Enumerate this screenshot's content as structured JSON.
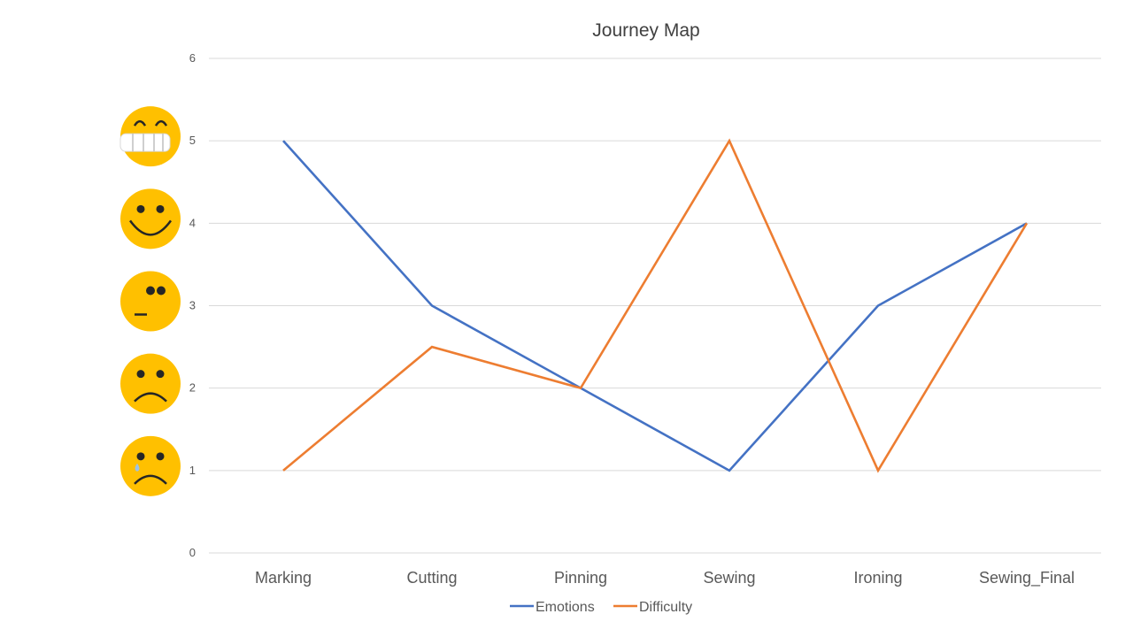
{
  "chart_data": {
    "type": "line",
    "title": "Journey Map",
    "xlabel": "",
    "ylabel": "",
    "categories": [
      "Marking",
      "Cutting",
      "Pinning",
      "Sewing",
      "Ironing",
      "Sewing_Final"
    ],
    "ylim": [
      0,
      6
    ],
    "yticks": [
      0,
      1,
      2,
      3,
      4,
      5,
      6
    ],
    "grid": true,
    "legend_position": "bottom",
    "series": [
      {
        "name": "Emotions",
        "color": "#4472c4",
        "values": [
          5,
          3,
          2,
          1,
          3,
          4
        ]
      },
      {
        "name": "Difficulty",
        "color": "#ed7d31",
        "values": [
          1,
          2.5,
          2,
          5,
          1,
          4
        ]
      }
    ],
    "emoji_scale": [
      {
        "level": 5,
        "icon": "grinning-face-icon"
      },
      {
        "level": 4,
        "icon": "smiling-face-icon"
      },
      {
        "level": 3,
        "icon": "neutral-face-icon"
      },
      {
        "level": 2,
        "icon": "frowning-face-icon"
      },
      {
        "level": 1,
        "icon": "crying-face-icon"
      }
    ],
    "emoji_color": "#ffc000"
  }
}
